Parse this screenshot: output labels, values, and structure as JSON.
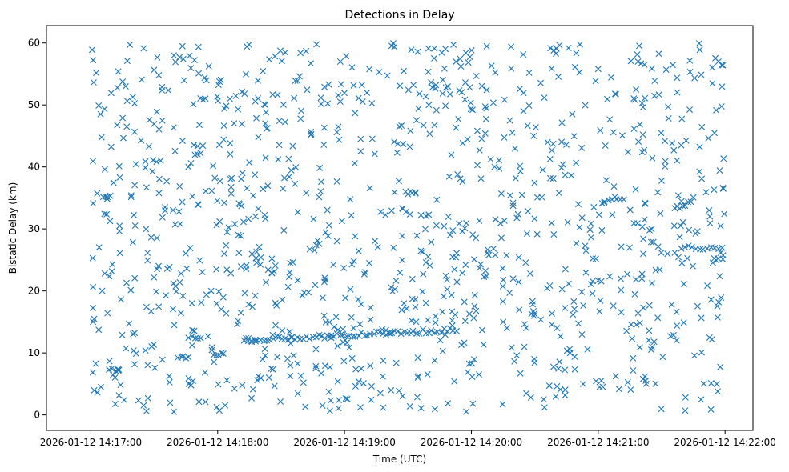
{
  "chart_data": {
    "type": "scatter",
    "title": "Detections in Delay",
    "xlabel": "Time (UTC)",
    "ylabel": "Bistatic Delay (km)",
    "marker": "x",
    "color": "#1f77b4",
    "grid": false,
    "legend": "none",
    "x_unit": "minutes after 2026-01-12 14:17:00",
    "xlim": [
      -0.35,
      5.22
    ],
    "ylim": [
      -2.5,
      62.8
    ],
    "x_ticks": [
      {
        "value": 0,
        "label": "2026-01-12 14:17:00"
      },
      {
        "value": 1,
        "label": "2026-01-12 14:18:00"
      },
      {
        "value": 2,
        "label": "2026-01-12 14:19:00"
      },
      {
        "value": 3,
        "label": "2026-01-12 14:20:00"
      },
      {
        "value": 4,
        "label": "2026-01-12 14:21:00"
      },
      {
        "value": 5,
        "label": "2026-01-12 14:22:00"
      }
    ],
    "y_ticks": [
      0,
      10,
      20,
      30,
      40,
      50,
      60
    ],
    "tracks": [
      {
        "x0": 1.22,
        "y0": 12.1,
        "x1": 2.88,
        "y1": 13.7,
        "count": 70,
        "jitter": 0.35
      },
      {
        "x0": 4.05,
        "y0": 34.6,
        "x1": 4.2,
        "y1": 34.6,
        "count": 6,
        "jitter": 0.2
      },
      {
        "x0": 4.6,
        "y0": 33.0,
        "x1": 4.75,
        "y1": 35.0,
        "count": 8,
        "jitter": 0.4
      },
      {
        "x0": 4.65,
        "y0": 27.0,
        "x1": 4.98,
        "y1": 27.0,
        "count": 12,
        "jitter": 0.3
      },
      {
        "x0": 4.9,
        "y0": 24.5,
        "x1": 4.98,
        "y1": 26.0,
        "count": 6,
        "jitter": 0.5
      },
      {
        "x0": 0.77,
        "y0": 12.5,
        "x1": 0.87,
        "y1": 12.5,
        "count": 5,
        "jitter": 0.2
      },
      {
        "x0": 0.97,
        "y0": 9.8,
        "x1": 1.05,
        "y1": 9.8,
        "count": 5,
        "jitter": 0.2
      },
      {
        "x0": 0.69,
        "y0": 9.3,
        "x1": 0.77,
        "y1": 9.3,
        "count": 5,
        "jitter": 0.2
      },
      {
        "x0": 0.1,
        "y0": 35.3,
        "x1": 0.15,
        "y1": 35.3,
        "count": 4,
        "jitter": 0.2
      },
      {
        "x0": 0.14,
        "y0": 7.3,
        "x1": 0.22,
        "y1": 7.3,
        "count": 4,
        "jitter": 0.3
      },
      {
        "x0": 2.5,
        "y0": 35.7,
        "x1": 2.56,
        "y1": 35.7,
        "count": 3,
        "jitter": 0.2
      },
      {
        "x0": 2.48,
        "y0": 36.0,
        "x1": 2.56,
        "y1": 36.0,
        "count": 3,
        "jitter": 0.2
      },
      {
        "x0": 1.21,
        "y0": 11.9,
        "x1": 1.3,
        "y1": 11.9,
        "count": 4,
        "jitter": 0.2
      },
      {
        "x0": 4.5,
        "y0": 26.0,
        "x1": 4.6,
        "y1": 26.0,
        "count": 3,
        "jitter": 0.2
      }
    ],
    "scatter": {
      "count": 1100,
      "x_range": [
        0,
        5
      ],
      "y_range": [
        0.5,
        60
      ]
    }
  }
}
